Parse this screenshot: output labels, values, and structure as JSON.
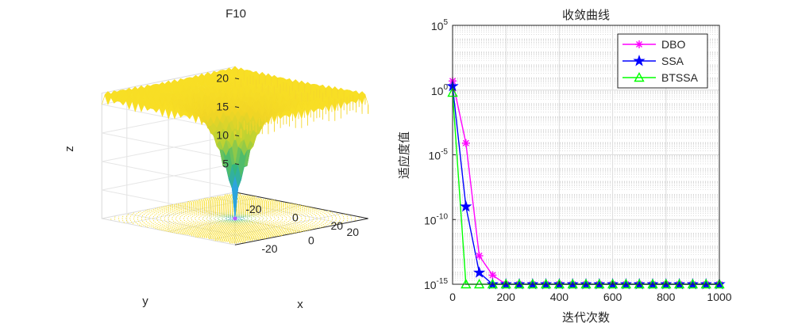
{
  "chart_data": [
    {
      "type": "surface",
      "title": "F10",
      "xlabel": "x",
      "ylabel": "y",
      "zlabel": "z",
      "x_ticks": [
        "-20",
        "0",
        "20"
      ],
      "y_ticks": [
        "-20",
        "0",
        "20"
      ],
      "z_ticks": [
        "5",
        "10",
        "15",
        "20"
      ],
      "xlim": [
        -32,
        32
      ],
      "ylim": [
        -32,
        32
      ],
      "zlim": [
        0,
        22
      ],
      "function": "Ackley",
      "surface_plateau_z": 21.5,
      "colormap": [
        "#3e26a8",
        "#2da4e0",
        "#35b779",
        "#b8d234",
        "#f2d524",
        "#f9e025"
      ]
    },
    {
      "type": "line",
      "title": "收敛曲线",
      "xlabel": "迭代次数",
      "ylabel": "适应度值",
      "y_scale": "log",
      "xlim": [
        0,
        1000
      ],
      "ylim_exp": [
        -15,
        5
      ],
      "x_ticks": [
        "0",
        "200",
        "400",
        "600",
        "800",
        "1000"
      ],
      "y_tick_base": "10",
      "y_tick_exps": [
        "5",
        "0",
        "-5",
        "-10",
        "-15"
      ],
      "legend_position": "top-right",
      "series": [
        {
          "name": "DBO",
          "color": "#ff00ff",
          "marker": "asterisk",
          "x": [
            0,
            50,
            100,
            150,
            200,
            250,
            300,
            350,
            400,
            450,
            500,
            550,
            600,
            650,
            700,
            750,
            800,
            850,
            900,
            950,
            1000
          ],
          "log10_y": [
            0.7,
            -4.1,
            -12.8,
            -14.3,
            -15,
            -15,
            -15,
            -15,
            -15,
            -15,
            -15,
            -15,
            -15,
            -15,
            -15,
            -15,
            -15,
            -15,
            -15,
            -15,
            -15
          ]
        },
        {
          "name": "SSA",
          "color": "#0000ff",
          "marker": "star",
          "x": [
            0,
            50,
            100,
            150,
            200,
            250,
            300,
            350,
            400,
            450,
            500,
            550,
            600,
            650,
            700,
            750,
            800,
            850,
            900,
            950,
            1000
          ],
          "log10_y": [
            0.3,
            -9.0,
            -14.1,
            -15,
            -15,
            -15,
            -15,
            -15,
            -15,
            -15,
            -15,
            -15,
            -15,
            -15,
            -15,
            -15,
            -15,
            -15,
            -15,
            -15,
            -15
          ]
        },
        {
          "name": "BTSSA",
          "color": "#00ff00",
          "marker": "triangle",
          "x": [
            0,
            50,
            100,
            150,
            200,
            250,
            300,
            350,
            400,
            450,
            500,
            550,
            600,
            650,
            700,
            750,
            800,
            850,
            900,
            950,
            1000
          ],
          "log10_y": [
            -0.2,
            -15,
            -15,
            -15,
            -15,
            -15,
            -15,
            -15,
            -15,
            -15,
            -15,
            -15,
            -15,
            -15,
            -15,
            -15,
            -15,
            -15,
            -15,
            -15,
            -15
          ]
        }
      ]
    }
  ]
}
